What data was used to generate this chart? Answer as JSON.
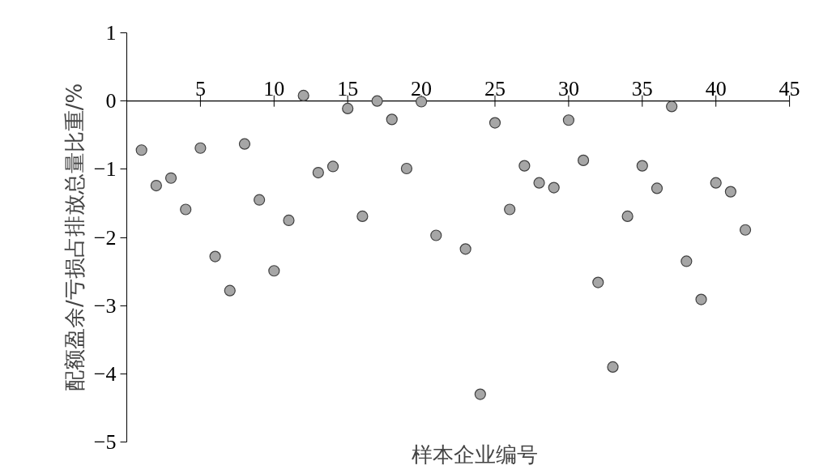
{
  "chart_data": {
    "type": "scatter",
    "xlabel": "样本企业编号",
    "ylabel": "配额盈余/亏损占排放总量比重/%",
    "x": [
      1,
      2,
      3,
      4,
      5,
      6,
      7,
      8,
      9,
      10,
      11,
      12,
      13,
      14,
      15,
      16,
      17,
      18,
      19,
      20,
      21,
      23,
      24,
      25,
      26,
      27,
      28,
      29,
      30,
      31,
      32,
      33,
      34,
      35,
      36,
      37,
      38,
      39,
      40,
      41,
      42
    ],
    "series": [
      {
        "color": "#a6a6a6",
        "values": [
          -0.72,
          -1.24,
          -1.13,
          -1.59,
          -0.69,
          -2.28,
          -2.78,
          -0.63,
          -1.45,
          -2.49,
          -1.75,
          0.08,
          -1.05,
          -0.96,
          -0.11,
          -1.69,
          0,
          -0.27,
          -0.99,
          -0.01,
          -1.97,
          -2.17,
          -4.3,
          -0.32,
          -1.59,
          -0.95,
          -1.2,
          -1.27,
          -0.28,
          -0.87,
          -2.66,
          -3.9,
          -1.69,
          -0.95,
          -1.28,
          -0.08,
          -2.35,
          -2.91,
          -1.2,
          -1.33,
          -1.89
        ]
      }
    ],
    "xlim": [
      0,
      45
    ],
    "xticks": [
      5,
      10,
      15,
      20,
      25,
      30,
      35,
      40,
      45
    ],
    "ylim": [
      -5,
      1
    ],
    "yticks": [
      -5,
      -4,
      -3,
      -2,
      -1,
      0,
      1
    ],
    "grid": false,
    "marker": "circle"
  }
}
